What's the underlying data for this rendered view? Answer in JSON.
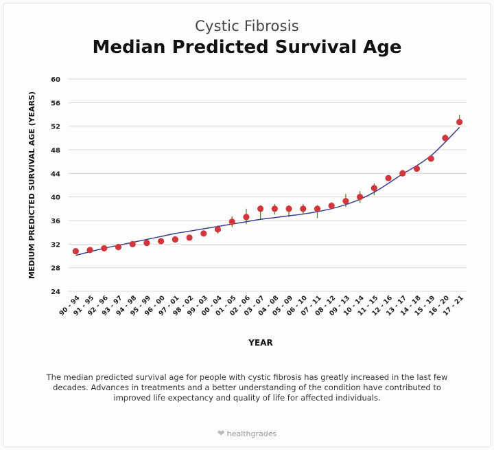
{
  "header": {
    "subtitle": "Cystic Fibrosis",
    "title": "Median Predicted Survival Age"
  },
  "caption": "The median predicted survival age for people with cystic fibrosis has greatly increased in the last few decades. Advances in treatments and a better understanding of the condition have contributed to improved life expectancy and quality of life for affected individuals.",
  "brand": {
    "name": "healthgrades"
  },
  "colors": {
    "point": "#d2363c",
    "trend": "#3b3f8f",
    "errorbar": "#5a8a3c",
    "grid": "#d9d9d9",
    "text": "#222222"
  },
  "chart_data": {
    "type": "scatter",
    "title": "Median Predicted Survival Age",
    "xlabel": "YEAR",
    "ylabel": "MEDIUM PREDICTED SURVIVAL AGE (YEARS)",
    "ylim": [
      24,
      60
    ],
    "yticks": [
      24,
      28,
      32,
      36,
      40,
      44,
      48,
      52,
      56,
      60
    ],
    "grid": true,
    "categories": [
      "90 - 94",
      "91 - 95",
      "92 - 96",
      "93 - 97",
      "94 - 98",
      "95 - 99",
      "96 - 00",
      "97 - 01",
      "98 - 02",
      "99 - 03",
      "00 - 04",
      "01 - 05",
      "02 - 06",
      "03 - 07",
      "04 - 08",
      "05 - 09",
      "06 - 10",
      "07 - 11",
      "08 - 12",
      "09 - 13",
      "10 - 14",
      "11 - 15",
      "12 - 16",
      "13 - 17",
      "14 - 18",
      "15 - 19",
      "16 - 20",
      "17 - 21"
    ],
    "series": [
      {
        "values": [
          30.8,
          31.0,
          31.3,
          31.5,
          32.0,
          32.2,
          32.5,
          32.8,
          33.1,
          33.8,
          34.5,
          35.8,
          36.6,
          38.0,
          38.0,
          38.0,
          38.0,
          38.0,
          38.5,
          39.3,
          40.0,
          41.5,
          43.2,
          44.0,
          44.8,
          46.5,
          50.0,
          52.7
        ],
        "error_low": [
          0.4,
          0.3,
          0.3,
          0.3,
          0.3,
          0.3,
          0.3,
          0.3,
          0.3,
          0.3,
          0.7,
          0.9,
          1.2,
          1.8,
          1.0,
          1.4,
          1.0,
          1.6,
          0.6,
          1.0,
          1.0,
          1.2,
          0.4,
          0.5,
          0.3,
          0.3,
          0.6,
          0.5
        ],
        "error_high": [
          0.4,
          0.3,
          0.3,
          0.3,
          0.3,
          0.3,
          0.3,
          0.3,
          0.3,
          0.3,
          0.7,
          0.9,
          1.4,
          0.6,
          0.8,
          0.6,
          0.8,
          0.6,
          0.6,
          1.2,
          1.0,
          0.8,
          0.4,
          0.6,
          0.3,
          0.3,
          0.6,
          1.2
        ]
      }
    ],
    "trend": [
      30.1,
      30.7,
      31.3,
      31.8,
      32.3,
      32.8,
      33.3,
      33.8,
      34.2,
      34.6,
      35.0,
      35.4,
      35.8,
      36.2,
      36.5,
      36.8,
      37.1,
      37.5,
      38.0,
      38.7,
      39.6,
      40.8,
      42.3,
      43.9,
      45.3,
      47.0,
      49.3,
      51.8
    ]
  }
}
